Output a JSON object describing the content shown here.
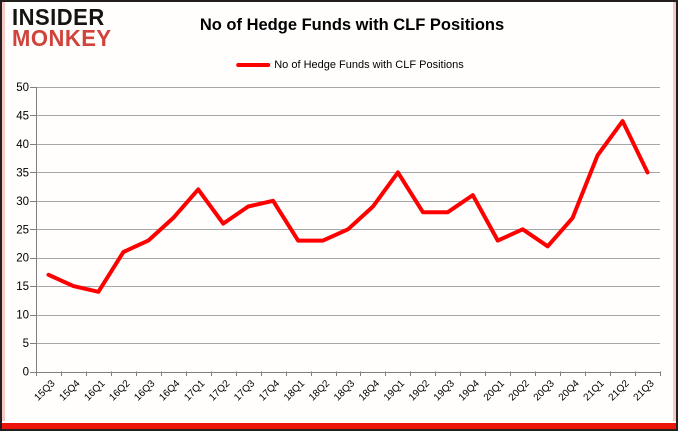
{
  "logo": {
    "line1": "INSIDER",
    "line2": "MONKEY"
  },
  "header": {
    "title": "No of Hedge Funds with CLF Positions"
  },
  "legend": {
    "label": "No of Hedge Funds with CLF Positions"
  },
  "colors": {
    "line": "#fe0000",
    "grid": "#a6a6a6",
    "axis": "#7f7f7f",
    "text": "#000000",
    "accent_bar": "#ec1309",
    "border_pink": "#f5c9c5",
    "logo_red": "#d0433b"
  },
  "chart_data": {
    "type": "line",
    "title": "No of Hedge Funds with CLF Positions",
    "categories": [
      "15Q3",
      "15Q4",
      "16Q1",
      "16Q2",
      "16Q3",
      "16Q4",
      "17Q1",
      "17Q2",
      "17Q3",
      "17Q4",
      "18Q1",
      "18Q2",
      "18Q3",
      "18Q4",
      "19Q1",
      "19Q2",
      "19Q3",
      "19Q4",
      "20Q1",
      "20Q2",
      "20Q3",
      "20Q4",
      "21Q1",
      "21Q2",
      "21Q3"
    ],
    "series": [
      {
        "name": "No of Hedge Funds with CLF Positions",
        "color": "#fe0000",
        "values": [
          17,
          15,
          14,
          21,
          23,
          27,
          32,
          26,
          29,
          30,
          23,
          23,
          25,
          29,
          35,
          28,
          28,
          31,
          23,
          25,
          22,
          27,
          38,
          44,
          35
        ]
      }
    ],
    "ylim": [
      0,
      50
    ],
    "ytick_step": 5,
    "xlabel": "",
    "ylabel": "",
    "grid": "horizontal",
    "legend_position": "top",
    "x_label_rotation": -45
  }
}
